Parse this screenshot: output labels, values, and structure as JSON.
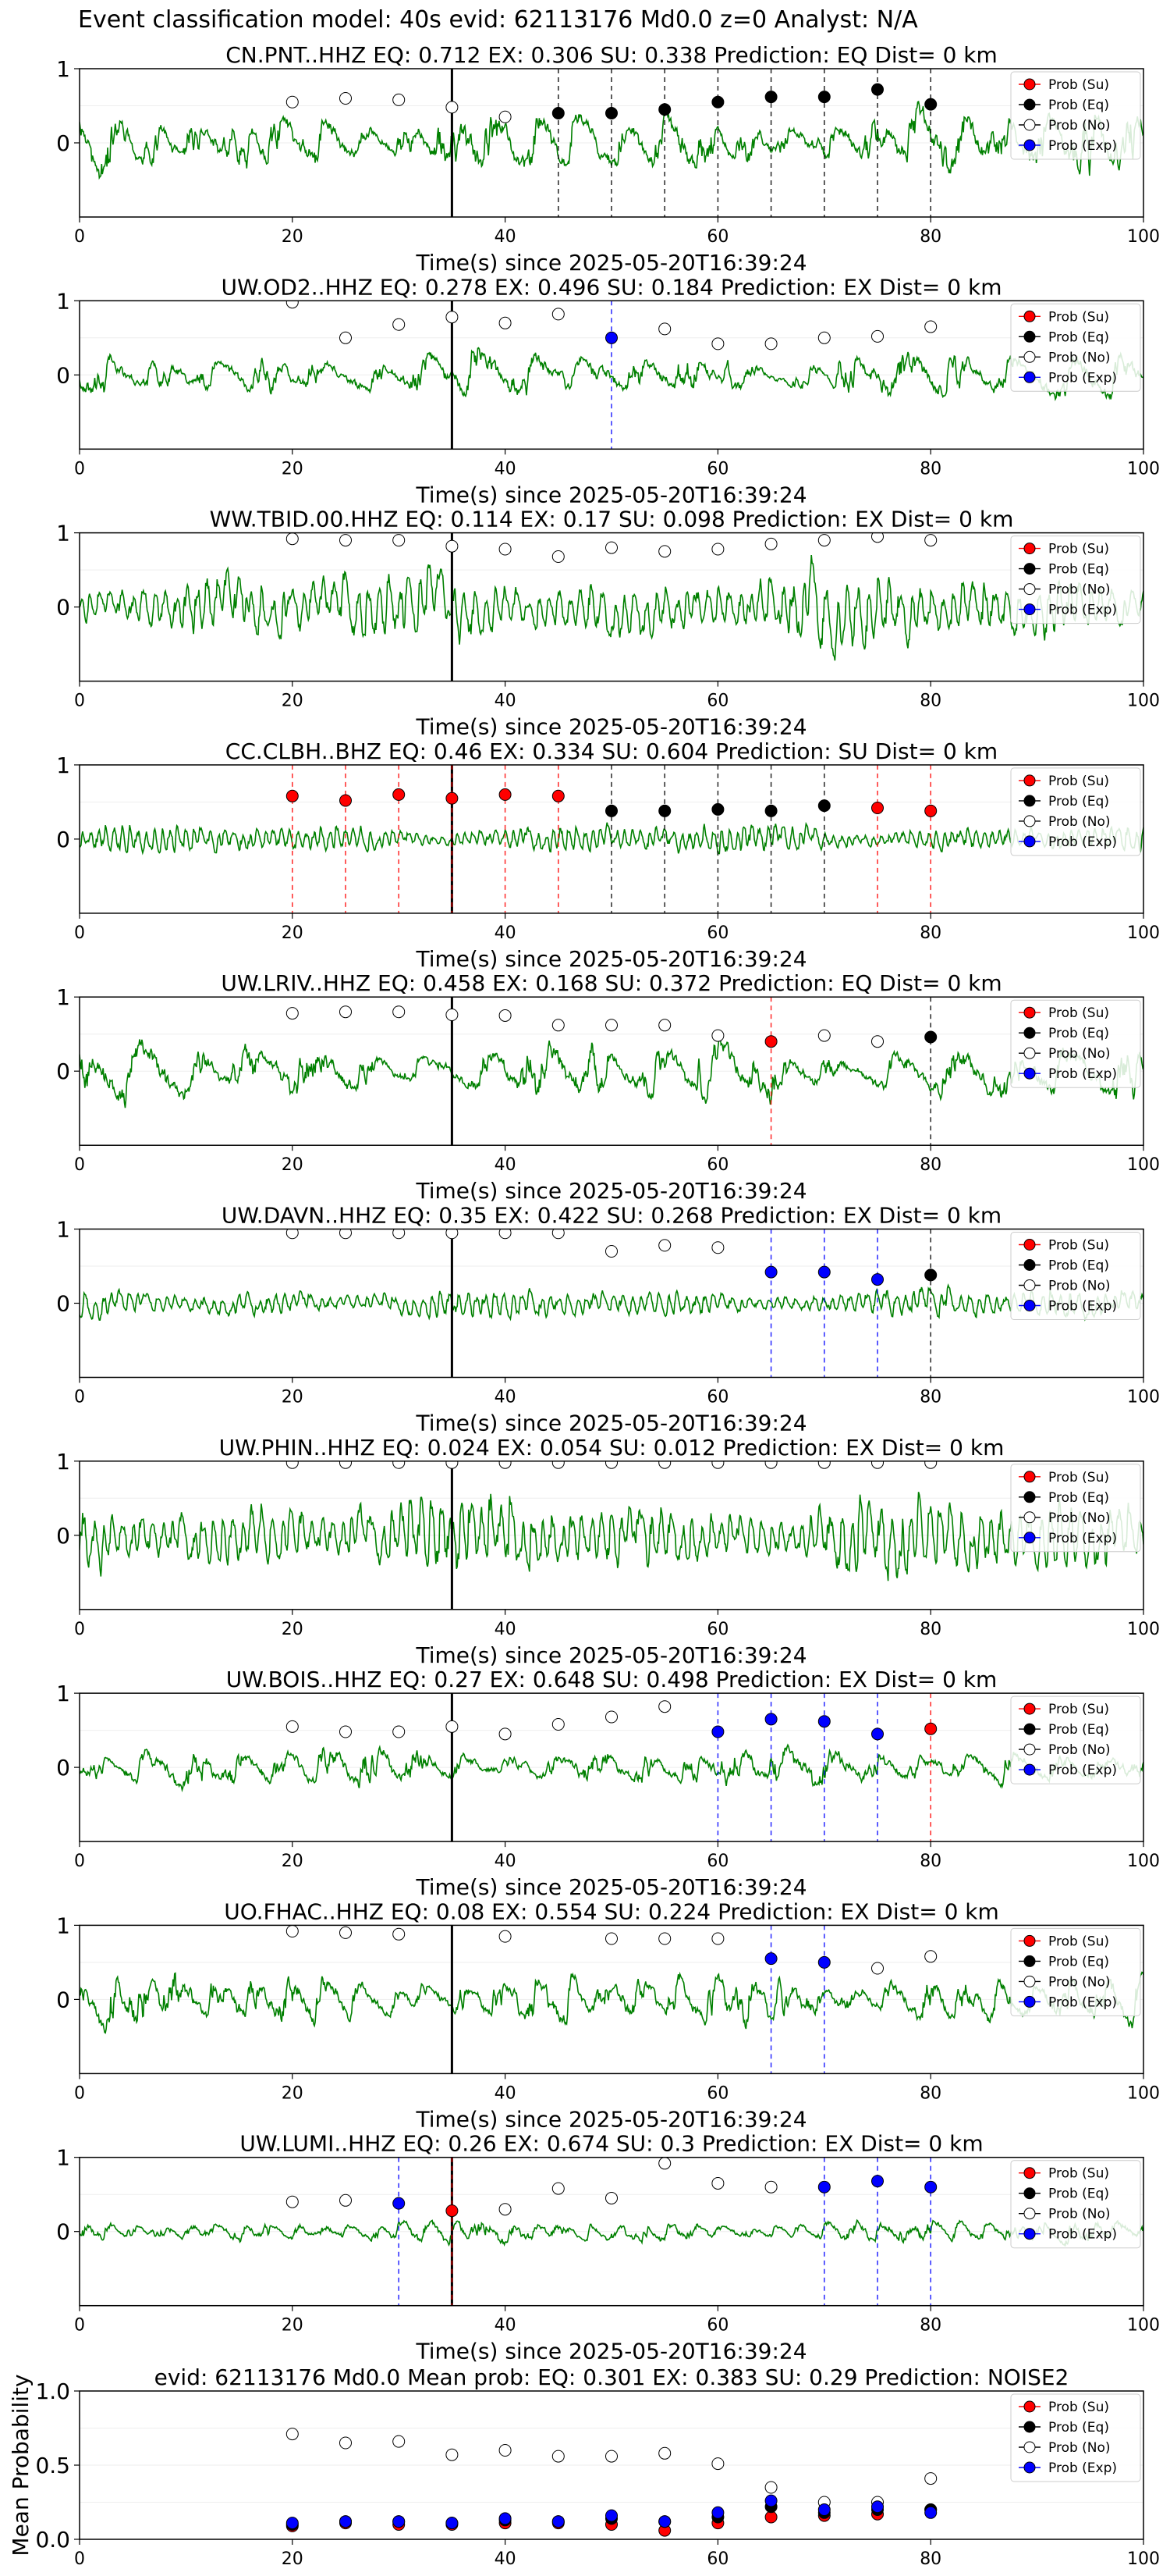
{
  "suptitle": "Event classification model: 40s evid: 62113176 Md0.0 z=0 Analyst: N/A",
  "legend_labels": [
    "Prob (Su)",
    "Prob (Eq)",
    "Prob (No)",
    "Prob (Exp)"
  ],
  "colors": {
    "su": "#ff0000",
    "eq": "#000000",
    "no": "#ffffff",
    "exp": "#0000ff",
    "waveform": "#008000",
    "arrival_line": "#000000"
  },
  "chart_data": [
    {
      "type": "line",
      "title": "CN.PNT..HHZ   EQ: 0.712  EX: 0.306  SU: 0.338   Prediction: EQ    Dist= 0 km",
      "xlabel": "Time(s) since 2025-05-20T16:39:24",
      "xlim": [
        0,
        100
      ],
      "ylim": [
        -1,
        1
      ],
      "xticks": [
        "0",
        "20",
        "40",
        "60",
        "80",
        "100"
      ],
      "yticks": [
        "1",
        "0"
      ],
      "arrival_time": 35,
      "waveform": {
        "name": "",
        "amp": 0.5,
        "freq": 0.75,
        "seed": 11
      },
      "markers": [
        {
          "x": 20,
          "y": 0.55,
          "class": "no"
        },
        {
          "x": 25,
          "y": 0.6,
          "class": "no"
        },
        {
          "x": 30,
          "y": 0.58,
          "class": "no"
        },
        {
          "x": 35,
          "y": 0.48,
          "class": "no"
        },
        {
          "x": 40,
          "y": 0.35,
          "class": "no"
        },
        {
          "x": 45,
          "y": 0.4,
          "class": "eq"
        },
        {
          "x": 50,
          "y": 0.4,
          "class": "eq"
        },
        {
          "x": 55,
          "y": 0.45,
          "class": "eq"
        },
        {
          "x": 60,
          "y": 0.55,
          "class": "eq"
        },
        {
          "x": 65,
          "y": 0.62,
          "class": "eq"
        },
        {
          "x": 70,
          "y": 0.62,
          "class": "eq"
        },
        {
          "x": 75,
          "y": 0.72,
          "class": "eq"
        },
        {
          "x": 80,
          "y": 0.52,
          "class": "eq"
        }
      ],
      "legend": "upper right"
    },
    {
      "type": "line",
      "title": "UW.OD2..HHZ   EQ: 0.278  EX: 0.496  SU: 0.184   Prediction: EX    Dist= 0 km",
      "xlabel": "Time(s) since 2025-05-20T16:39:24",
      "xlim": [
        0,
        100
      ],
      "ylim": [
        -1,
        1
      ],
      "xticks": [
        "0",
        "20",
        "40",
        "60",
        "80",
        "100"
      ],
      "yticks": [
        "1",
        "0"
      ],
      "arrival_time": 35,
      "waveform": {
        "name": "",
        "amp": 0.35,
        "freq": 0.6,
        "seed": 23
      },
      "markers": [
        {
          "x": 20,
          "y": 0.98,
          "class": "no"
        },
        {
          "x": 25,
          "y": 0.5,
          "class": "no"
        },
        {
          "x": 30,
          "y": 0.68,
          "class": "no"
        },
        {
          "x": 35,
          "y": 0.78,
          "class": "no"
        },
        {
          "x": 40,
          "y": 0.7,
          "class": "no"
        },
        {
          "x": 45,
          "y": 0.82,
          "class": "no"
        },
        {
          "x": 50,
          "y": 0.5,
          "class": "exp"
        },
        {
          "x": 55,
          "y": 0.62,
          "class": "no"
        },
        {
          "x": 60,
          "y": 0.42,
          "class": "no"
        },
        {
          "x": 65,
          "y": 0.42,
          "class": "no"
        },
        {
          "x": 70,
          "y": 0.5,
          "class": "no"
        },
        {
          "x": 75,
          "y": 0.52,
          "class": "no"
        },
        {
          "x": 80,
          "y": 0.65,
          "class": "no"
        }
      ],
      "legend": "upper right"
    },
    {
      "type": "line",
      "title": "WW.TBID.00.HHZ   EQ: 0.114  EX: 0.17  SU: 0.098   Prediction: EX    Dist= 0 km",
      "xlabel": "Time(s) since 2025-05-20T16:39:24",
      "xlim": [
        0,
        100
      ],
      "ylim": [
        -1,
        1
      ],
      "xticks": [
        "0",
        "20",
        "40",
        "60",
        "80",
        "100"
      ],
      "yticks": [
        "1",
        "0"
      ],
      "arrival_time": 35,
      "waveform": {
        "name": "",
        "amp": 0.55,
        "freq": 3.0,
        "seed": 37
      },
      "markers": [
        {
          "x": 20,
          "y": 0.92,
          "class": "no"
        },
        {
          "x": 25,
          "y": 0.9,
          "class": "no"
        },
        {
          "x": 30,
          "y": 0.9,
          "class": "no"
        },
        {
          "x": 35,
          "y": 0.82,
          "class": "no"
        },
        {
          "x": 40,
          "y": 0.78,
          "class": "no"
        },
        {
          "x": 45,
          "y": 0.68,
          "class": "no"
        },
        {
          "x": 50,
          "y": 0.8,
          "class": "no"
        },
        {
          "x": 55,
          "y": 0.75,
          "class": "no"
        },
        {
          "x": 60,
          "y": 0.78,
          "class": "no"
        },
        {
          "x": 65,
          "y": 0.85,
          "class": "no"
        },
        {
          "x": 70,
          "y": 0.9,
          "class": "no"
        },
        {
          "x": 75,
          "y": 0.95,
          "class": "no"
        },
        {
          "x": 80,
          "y": 0.9,
          "class": "no"
        }
      ],
      "legend": "upper right"
    },
    {
      "type": "line",
      "title": "CC.CLBH..BHZ   EQ: 0.46  EX: 0.334  SU: 0.604   Prediction: SU    Dist= 0 km",
      "xlabel": "Time(s) since 2025-05-20T16:39:24",
      "xlim": [
        0,
        100
      ],
      "ylim": [
        -1,
        1
      ],
      "xticks": [
        "0",
        "20",
        "40",
        "60",
        "80",
        "100"
      ],
      "yticks": [
        "1",
        "0"
      ],
      "arrival_time": 35,
      "waveform": {
        "name": "",
        "amp": 0.22,
        "freq": 4.0,
        "seed": 41
      },
      "markers": [
        {
          "x": 20,
          "y": 0.58,
          "class": "su"
        },
        {
          "x": 25,
          "y": 0.52,
          "class": "su"
        },
        {
          "x": 30,
          "y": 0.6,
          "class": "su"
        },
        {
          "x": 35,
          "y": 0.55,
          "class": "su"
        },
        {
          "x": 40,
          "y": 0.6,
          "class": "su"
        },
        {
          "x": 45,
          "y": 0.58,
          "class": "su"
        },
        {
          "x": 50,
          "y": 0.38,
          "class": "eq"
        },
        {
          "x": 55,
          "y": 0.38,
          "class": "eq"
        },
        {
          "x": 60,
          "y": 0.4,
          "class": "eq"
        },
        {
          "x": 65,
          "y": 0.38,
          "class": "eq"
        },
        {
          "x": 70,
          "y": 0.45,
          "class": "eq"
        },
        {
          "x": 75,
          "y": 0.42,
          "class": "su"
        },
        {
          "x": 80,
          "y": 0.38,
          "class": "su"
        }
      ],
      "legend": "upper right"
    },
    {
      "type": "line",
      "title": "UW.LRIV..HHZ   EQ: 0.458  EX: 0.168  SU: 0.372   Prediction: EQ    Dist= 0 km",
      "xlabel": "Time(s) since 2025-05-20T16:39:24",
      "xlim": [
        0,
        100
      ],
      "ylim": [
        -1,
        1
      ],
      "xticks": [
        "0",
        "20",
        "40",
        "60",
        "80",
        "100"
      ],
      "yticks": [
        "1",
        "0"
      ],
      "arrival_time": 35,
      "waveform": {
        "name": "",
        "amp": 0.45,
        "freq": 0.55,
        "seed": 53
      },
      "markers": [
        {
          "x": 20,
          "y": 0.78,
          "class": "no"
        },
        {
          "x": 25,
          "y": 0.8,
          "class": "no"
        },
        {
          "x": 30,
          "y": 0.8,
          "class": "no"
        },
        {
          "x": 35,
          "y": 0.76,
          "class": "no"
        },
        {
          "x": 40,
          "y": 0.75,
          "class": "no"
        },
        {
          "x": 45,
          "y": 0.62,
          "class": "no"
        },
        {
          "x": 50,
          "y": 0.62,
          "class": "no"
        },
        {
          "x": 55,
          "y": 0.62,
          "class": "no"
        },
        {
          "x": 60,
          "y": 0.48,
          "class": "no"
        },
        {
          "x": 65,
          "y": 0.4,
          "class": "su"
        },
        {
          "x": 70,
          "y": 0.48,
          "class": "no"
        },
        {
          "x": 75,
          "y": 0.4,
          "class": "no"
        },
        {
          "x": 80,
          "y": 0.46,
          "class": "eq"
        }
      ],
      "legend": "upper right"
    },
    {
      "type": "line",
      "title": "UW.DAVN..HHZ   EQ: 0.35  EX: 0.422  SU: 0.268   Prediction: EX    Dist= 0 km",
      "xlabel": "Time(s) since 2025-05-20T16:39:24",
      "xlim": [
        0,
        100
      ],
      "ylim": [
        -1,
        1
      ],
      "xticks": [
        "0",
        "20",
        "40",
        "60",
        "80",
        "100"
      ],
      "yticks": [
        "1",
        "0"
      ],
      "arrival_time": 35,
      "waveform": {
        "name": "",
        "amp": 0.22,
        "freq": 3.5,
        "seed": 67
      },
      "markers": [
        {
          "x": 20,
          "y": 0.95,
          "class": "no"
        },
        {
          "x": 25,
          "y": 0.95,
          "class": "no"
        },
        {
          "x": 30,
          "y": 0.95,
          "class": "no"
        },
        {
          "x": 35,
          "y": 0.95,
          "class": "no"
        },
        {
          "x": 40,
          "y": 0.95,
          "class": "no"
        },
        {
          "x": 45,
          "y": 0.95,
          "class": "no"
        },
        {
          "x": 50,
          "y": 0.7,
          "class": "no"
        },
        {
          "x": 55,
          "y": 0.78,
          "class": "no"
        },
        {
          "x": 60,
          "y": 0.75,
          "class": "no"
        },
        {
          "x": 65,
          "y": 0.42,
          "class": "exp"
        },
        {
          "x": 70,
          "y": 0.42,
          "class": "exp"
        },
        {
          "x": 75,
          "y": 0.32,
          "class": "exp"
        },
        {
          "x": 80,
          "y": 0.38,
          "class": "eq"
        }
      ],
      "legend": "upper right"
    },
    {
      "type": "line",
      "title": "UW.PHIN..HHZ   EQ: 0.024  EX: 0.054  SU: 0.012   Prediction: EX    Dist= 0 km",
      "xlabel": "Time(s) since 2025-05-20T16:39:24",
      "xlim": [
        0,
        100
      ],
      "ylim": [
        -1,
        1
      ],
      "xticks": [
        "0",
        "20",
        "40",
        "60",
        "80",
        "100"
      ],
      "yticks": [
        "1",
        "0"
      ],
      "arrival_time": 35,
      "waveform": {
        "name": "",
        "amp": 0.6,
        "freq": 3.2,
        "seed": 79
      },
      "markers": [
        {
          "x": 20,
          "y": 0.98,
          "class": "no"
        },
        {
          "x": 25,
          "y": 0.98,
          "class": "no"
        },
        {
          "x": 30,
          "y": 0.98,
          "class": "no"
        },
        {
          "x": 35,
          "y": 0.98,
          "class": "no"
        },
        {
          "x": 40,
          "y": 0.98,
          "class": "no"
        },
        {
          "x": 45,
          "y": 0.98,
          "class": "no"
        },
        {
          "x": 50,
          "y": 0.98,
          "class": "no"
        },
        {
          "x": 55,
          "y": 0.98,
          "class": "no"
        },
        {
          "x": 60,
          "y": 0.98,
          "class": "no"
        },
        {
          "x": 65,
          "y": 0.98,
          "class": "no"
        },
        {
          "x": 70,
          "y": 0.98,
          "class": "no"
        },
        {
          "x": 75,
          "y": 0.98,
          "class": "no"
        },
        {
          "x": 80,
          "y": 0.98,
          "class": "no"
        }
      ],
      "legend": "upper right"
    },
    {
      "type": "line",
      "title": "UW.BOIS..HHZ   EQ: 0.27  EX: 0.648  SU: 0.498   Prediction: EX    Dist= 0 km",
      "xlabel": "Time(s) since 2025-05-20T16:39:24",
      "xlim": [
        0,
        100
      ],
      "ylim": [
        -1,
        1
      ],
      "xticks": [
        "0",
        "20",
        "40",
        "60",
        "80",
        "100"
      ],
      "yticks": [
        "1",
        "0"
      ],
      "arrival_time": 35,
      "waveform": {
        "name": "",
        "amp": 0.32,
        "freq": 0.7,
        "seed": 83
      },
      "markers": [
        {
          "x": 20,
          "y": 0.55,
          "class": "no"
        },
        {
          "x": 25,
          "y": 0.48,
          "class": "no"
        },
        {
          "x": 30,
          "y": 0.48,
          "class": "no"
        },
        {
          "x": 35,
          "y": 0.55,
          "class": "no"
        },
        {
          "x": 40,
          "y": 0.45,
          "class": "no"
        },
        {
          "x": 45,
          "y": 0.58,
          "class": "no"
        },
        {
          "x": 50,
          "y": 0.68,
          "class": "no"
        },
        {
          "x": 55,
          "y": 0.82,
          "class": "no"
        },
        {
          "x": 60,
          "y": 0.48,
          "class": "exp"
        },
        {
          "x": 65,
          "y": 0.65,
          "class": "exp"
        },
        {
          "x": 70,
          "y": 0.62,
          "class": "exp"
        },
        {
          "x": 75,
          "y": 0.45,
          "class": "exp"
        },
        {
          "x": 80,
          "y": 0.52,
          "class": "su"
        }
      ],
      "legend": "upper right"
    },
    {
      "type": "line",
      "title": "UO.FHAC..HHZ   EQ: 0.08  EX: 0.554  SU: 0.224   Prediction: EX    Dist= 0 km",
      "xlabel": "Time(s) since 2025-05-20T16:39:24",
      "xlim": [
        0,
        100
      ],
      "ylim": [
        -1,
        1
      ],
      "xticks": [
        "0",
        "20",
        "40",
        "60",
        "80",
        "100"
      ],
      "yticks": [
        "1",
        "0"
      ],
      "arrival_time": 35,
      "waveform": {
        "name": "",
        "amp": 0.4,
        "freq": 0.9,
        "seed": 97
      },
      "markers": [
        {
          "x": 20,
          "y": 0.92,
          "class": "no"
        },
        {
          "x": 25,
          "y": 0.9,
          "class": "no"
        },
        {
          "x": 30,
          "y": 0.88,
          "class": "no"
        },
        {
          "x": 40,
          "y": 0.85,
          "class": "no"
        },
        {
          "x": 50,
          "y": 0.82,
          "class": "no"
        },
        {
          "x": 55,
          "y": 0.82,
          "class": "no"
        },
        {
          "x": 60,
          "y": 0.82,
          "class": "no"
        },
        {
          "x": 65,
          "y": 0.55,
          "class": "exp"
        },
        {
          "x": 70,
          "y": 0.5,
          "class": "exp"
        },
        {
          "x": 75,
          "y": 0.42,
          "class": "no"
        },
        {
          "x": 80,
          "y": 0.58,
          "class": "no"
        }
      ],
      "legend": "upper right"
    },
    {
      "type": "line",
      "title": "UW.LUMI..HHZ   EQ: 0.26  EX: 0.674  SU: 0.3   Prediction: EX    Dist= 0 km",
      "xlabel": "Time(s) since 2025-05-20T16:39:24",
      "xlim": [
        0,
        100
      ],
      "ylim": [
        -1,
        1
      ],
      "xticks": [
        "0",
        "20",
        "40",
        "60",
        "80",
        "100"
      ],
      "yticks": [
        "1",
        "0"
      ],
      "arrival_time": 35,
      "waveform": {
        "name": "",
        "amp": 0.18,
        "freq": 1.2,
        "seed": 101
      },
      "markers": [
        {
          "x": 20,
          "y": 0.4,
          "class": "no"
        },
        {
          "x": 25,
          "y": 0.42,
          "class": "no"
        },
        {
          "x": 30,
          "y": 0.38,
          "class": "exp"
        },
        {
          "x": 35,
          "y": 0.28,
          "class": "su"
        },
        {
          "x": 40,
          "y": 0.3,
          "class": "no"
        },
        {
          "x": 45,
          "y": 0.58,
          "class": "no"
        },
        {
          "x": 50,
          "y": 0.45,
          "class": "no"
        },
        {
          "x": 55,
          "y": 0.92,
          "class": "no"
        },
        {
          "x": 60,
          "y": 0.65,
          "class": "no"
        },
        {
          "x": 65,
          "y": 0.6,
          "class": "no"
        },
        {
          "x": 70,
          "y": 0.6,
          "class": "exp"
        },
        {
          "x": 75,
          "y": 0.68,
          "class": "exp"
        },
        {
          "x": 80,
          "y": 0.6,
          "class": "exp"
        }
      ],
      "legend": "upper right"
    },
    {
      "type": "scatter",
      "title": "evid: 62113176  Md0.0   Mean prob:   EQ: 0.301  EX: 0.383  SU: 0.29   Prediction: NOISE2",
      "xlabel": "",
      "ylabel": "Mean Probability",
      "xlim": [
        0,
        100
      ],
      "ylim": [
        0,
        1
      ],
      "xticks": [
        "0",
        "20",
        "40",
        "60",
        "80",
        "100"
      ],
      "yticks": [
        "0.0",
        "0.5",
        "1.0"
      ],
      "x": [
        20,
        25,
        30,
        35,
        40,
        45,
        50,
        55,
        60,
        65,
        70,
        75,
        80
      ],
      "series": [
        {
          "name": "Prob (Su)",
          "class": "su",
          "values": [
            0.09,
            0.11,
            0.1,
            0.1,
            0.11,
            0.11,
            0.1,
            0.06,
            0.11,
            0.15,
            0.16,
            0.17,
            0.2
          ]
        },
        {
          "name": "Prob (Eq)",
          "class": "eq",
          "values": [
            0.1,
            0.12,
            0.12,
            0.11,
            0.13,
            0.12,
            0.14,
            0.12,
            0.15,
            0.22,
            0.18,
            0.2,
            0.2
          ]
        },
        {
          "name": "Prob (No)",
          "class": "no",
          "values": [
            0.71,
            0.65,
            0.66,
            0.57,
            0.6,
            0.56,
            0.56,
            0.58,
            0.51,
            0.35,
            0.25,
            0.25,
            0.41
          ]
        },
        {
          "name": "Prob (Exp)",
          "class": "exp",
          "values": [
            0.11,
            0.12,
            0.12,
            0.11,
            0.14,
            0.12,
            0.16,
            0.12,
            0.18,
            0.26,
            0.2,
            0.22,
            0.18
          ]
        }
      ],
      "legend": "upper right"
    }
  ]
}
